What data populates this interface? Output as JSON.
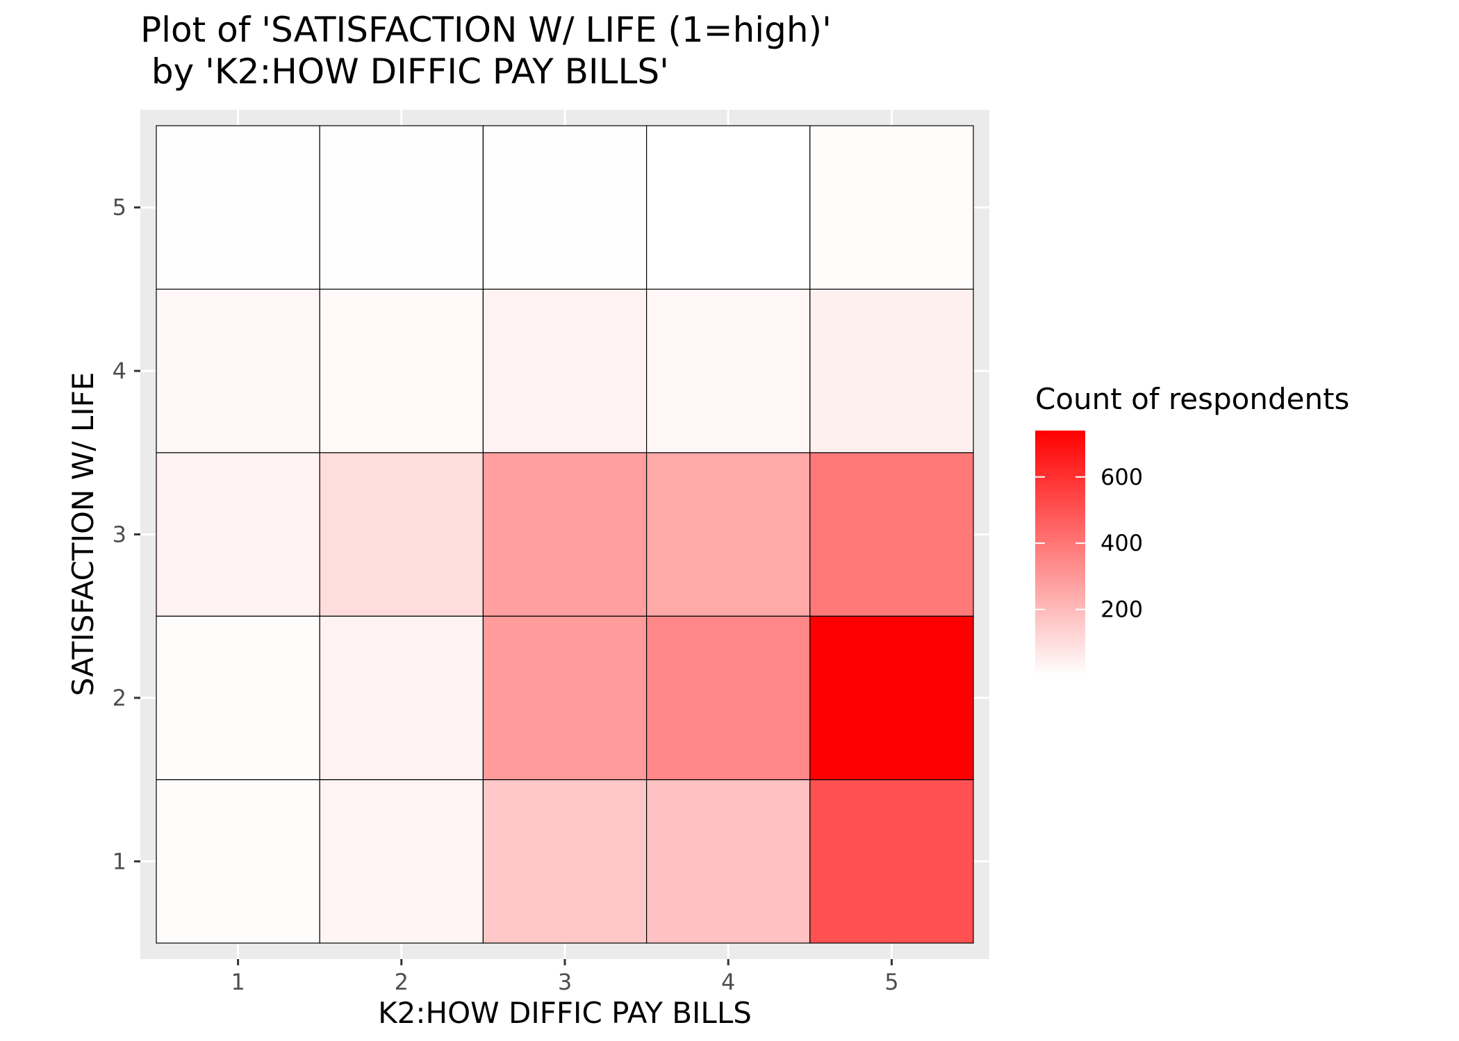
{
  "chart_data": {
    "type": "heatmap",
    "title_line1": "Plot of 'SATISFACTION W/ LIFE (1=high)'",
    "title_line2": " by 'K2:HOW DIFFIC PAY BILLS'",
    "xlabel": "K2:HOW DIFFIC PAY BILLS",
    "ylabel": "SATISFACTION W/ LIFE",
    "x_categories": [
      "1",
      "2",
      "3",
      "4",
      "5"
    ],
    "y_categories": [
      "1",
      "2",
      "3",
      "4",
      "5"
    ],
    "grid": true,
    "cells": [
      {
        "x": 1,
        "y": 1,
        "value": 10
      },
      {
        "x": 2,
        "y": 1,
        "value": 30
      },
      {
        "x": 3,
        "y": 1,
        "value": 160
      },
      {
        "x": 4,
        "y": 1,
        "value": 180
      },
      {
        "x": 5,
        "y": 1,
        "value": 505
      },
      {
        "x": 1,
        "y": 2,
        "value": 12
      },
      {
        "x": 2,
        "y": 2,
        "value": 40
      },
      {
        "x": 3,
        "y": 2,
        "value": 290
      },
      {
        "x": 4,
        "y": 2,
        "value": 350
      },
      {
        "x": 5,
        "y": 2,
        "value": 740
      },
      {
        "x": 1,
        "y": 3,
        "value": 40
      },
      {
        "x": 2,
        "y": 3,
        "value": 100
      },
      {
        "x": 3,
        "y": 3,
        "value": 280
      },
      {
        "x": 4,
        "y": 3,
        "value": 250
      },
      {
        "x": 5,
        "y": 3,
        "value": 390
      },
      {
        "x": 1,
        "y": 4,
        "value": 25
      },
      {
        "x": 2,
        "y": 4,
        "value": 20
      },
      {
        "x": 3,
        "y": 4,
        "value": 40
      },
      {
        "x": 4,
        "y": 4,
        "value": 25
      },
      {
        "x": 5,
        "y": 4,
        "value": 45
      },
      {
        "x": 1,
        "y": 5,
        "value": 6
      },
      {
        "x": 2,
        "y": 5,
        "value": 5
      },
      {
        "x": 3,
        "y": 5,
        "value": 6
      },
      {
        "x": 4,
        "y": 5,
        "value": 2
      },
      {
        "x": 5,
        "y": 5,
        "value": 10
      }
    ],
    "legend": {
      "title": "Count of respondents",
      "position": "right",
      "min": 2,
      "max": 740,
      "ticks": [
        200,
        400,
        600
      ],
      "tick_labels": [
        "200",
        "400",
        "600"
      ],
      "color_low": "#ffffff",
      "color_high": "#ff0000"
    },
    "colors": {
      "panel_background": "#ebebeb",
      "grid_line": "#ffffff",
      "cell_border": "#000000"
    }
  }
}
